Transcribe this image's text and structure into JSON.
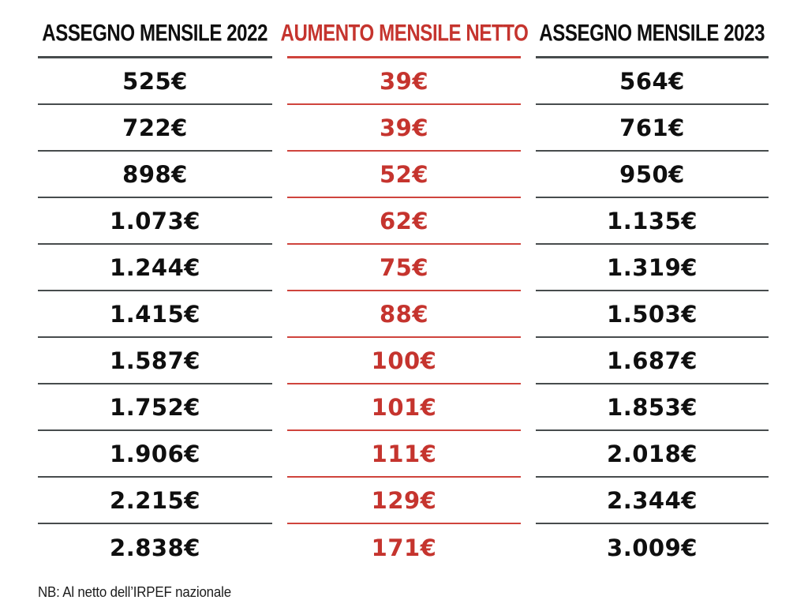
{
  "table": {
    "columns": [
      {
        "header": "ASSEGNO MENSILE 2022",
        "style": "black"
      },
      {
        "header": "AUMENTO MENSILE NETTO",
        "style": "red"
      },
      {
        "header": "ASSEGNO MENSILE 2023",
        "style": "black"
      }
    ],
    "rows": [
      [
        "525€",
        "39€",
        "564€"
      ],
      [
        "722€",
        "39€",
        "761€"
      ],
      [
        "898€",
        "52€",
        "950€"
      ],
      [
        "1.073€",
        "62€",
        "1.135€"
      ],
      [
        "1.244€",
        "75€",
        "1.319€"
      ],
      [
        "1.415€",
        "88€",
        "1.503€"
      ],
      [
        "1.587€",
        "100€",
        "1.687€"
      ],
      [
        "1.752€",
        "101€",
        "1.853€"
      ],
      [
        "1.906€",
        "111€",
        "2.018€"
      ],
      [
        "2.215€",
        "129€",
        "2.344€"
      ],
      [
        "2.838€",
        "171€",
        "3.009€"
      ]
    ]
  },
  "footer": {
    "note": "NB: Al netto dell’IRPEF nazionale"
  },
  "colors": {
    "accent_red_text": "#c5342e",
    "accent_red_rule": "#cf443d",
    "black_text": "#0f0f0f",
    "dark_rule": "#474c4d",
    "background": "#ffffff"
  },
  "chart_data": {
    "type": "table",
    "title": "",
    "columns": [
      "ASSEGNO MENSILE 2022",
      "AUMENTO MENSILE NETTO",
      "ASSEGNO MENSILE 2023"
    ],
    "rows": [
      [
        525,
        39,
        564
      ],
      [
        722,
        39,
        761
      ],
      [
        898,
        52,
        950
      ],
      [
        1073,
        62,
        1135
      ],
      [
        1244,
        75,
        1319
      ],
      [
        1415,
        88,
        1503
      ],
      [
        1587,
        100,
        1687
      ],
      [
        1752,
        101,
        1853
      ],
      [
        1906,
        111,
        2018
      ],
      [
        2215,
        129,
        2344
      ],
      [
        2838,
        171,
        3009
      ]
    ],
    "units": "EUR per month",
    "annotations": [
      "NB: Al netto dell’IRPEF nazionale"
    ]
  }
}
